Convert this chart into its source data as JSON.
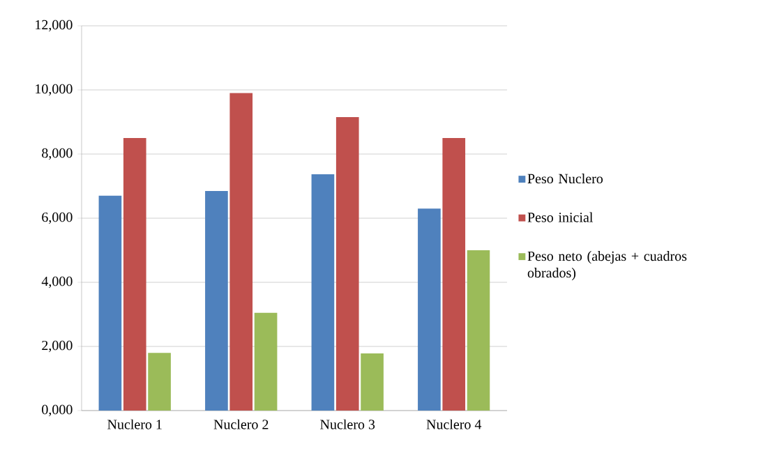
{
  "chart_data": {
    "type": "bar",
    "categories": [
      "Nuclero 1",
      "Nuclero 2",
      "Nuclero 3",
      "Nuclero 4"
    ],
    "series": [
      {
        "name": "Peso Nuclero",
        "color": "#4f81bd",
        "values": [
          6700,
          6850,
          7370,
          6300
        ]
      },
      {
        "name": "Peso inicial",
        "color": "#c0504d",
        "values": [
          8500,
          9900,
          9150,
          8500
        ]
      },
      {
        "name": "Peso neto (abejas + cuadros obrados)",
        "color": "#9bbb59",
        "values": [
          1800,
          3050,
          1780,
          5000
        ]
      }
    ],
    "ylim": [
      0,
      12000
    ],
    "yticks": [
      {
        "value": 0,
        "label": "0,000"
      },
      {
        "value": 2000,
        "label": "2,000"
      },
      {
        "value": 4000,
        "label": "4,000"
      },
      {
        "value": 6000,
        "label": "6,000"
      },
      {
        "value": 8000,
        "label": "8,000"
      },
      {
        "value": 10000,
        "label": "10,000"
      },
      {
        "value": 12000,
        "label": "12,000"
      }
    ],
    "grid": "y",
    "legend": "right"
  }
}
